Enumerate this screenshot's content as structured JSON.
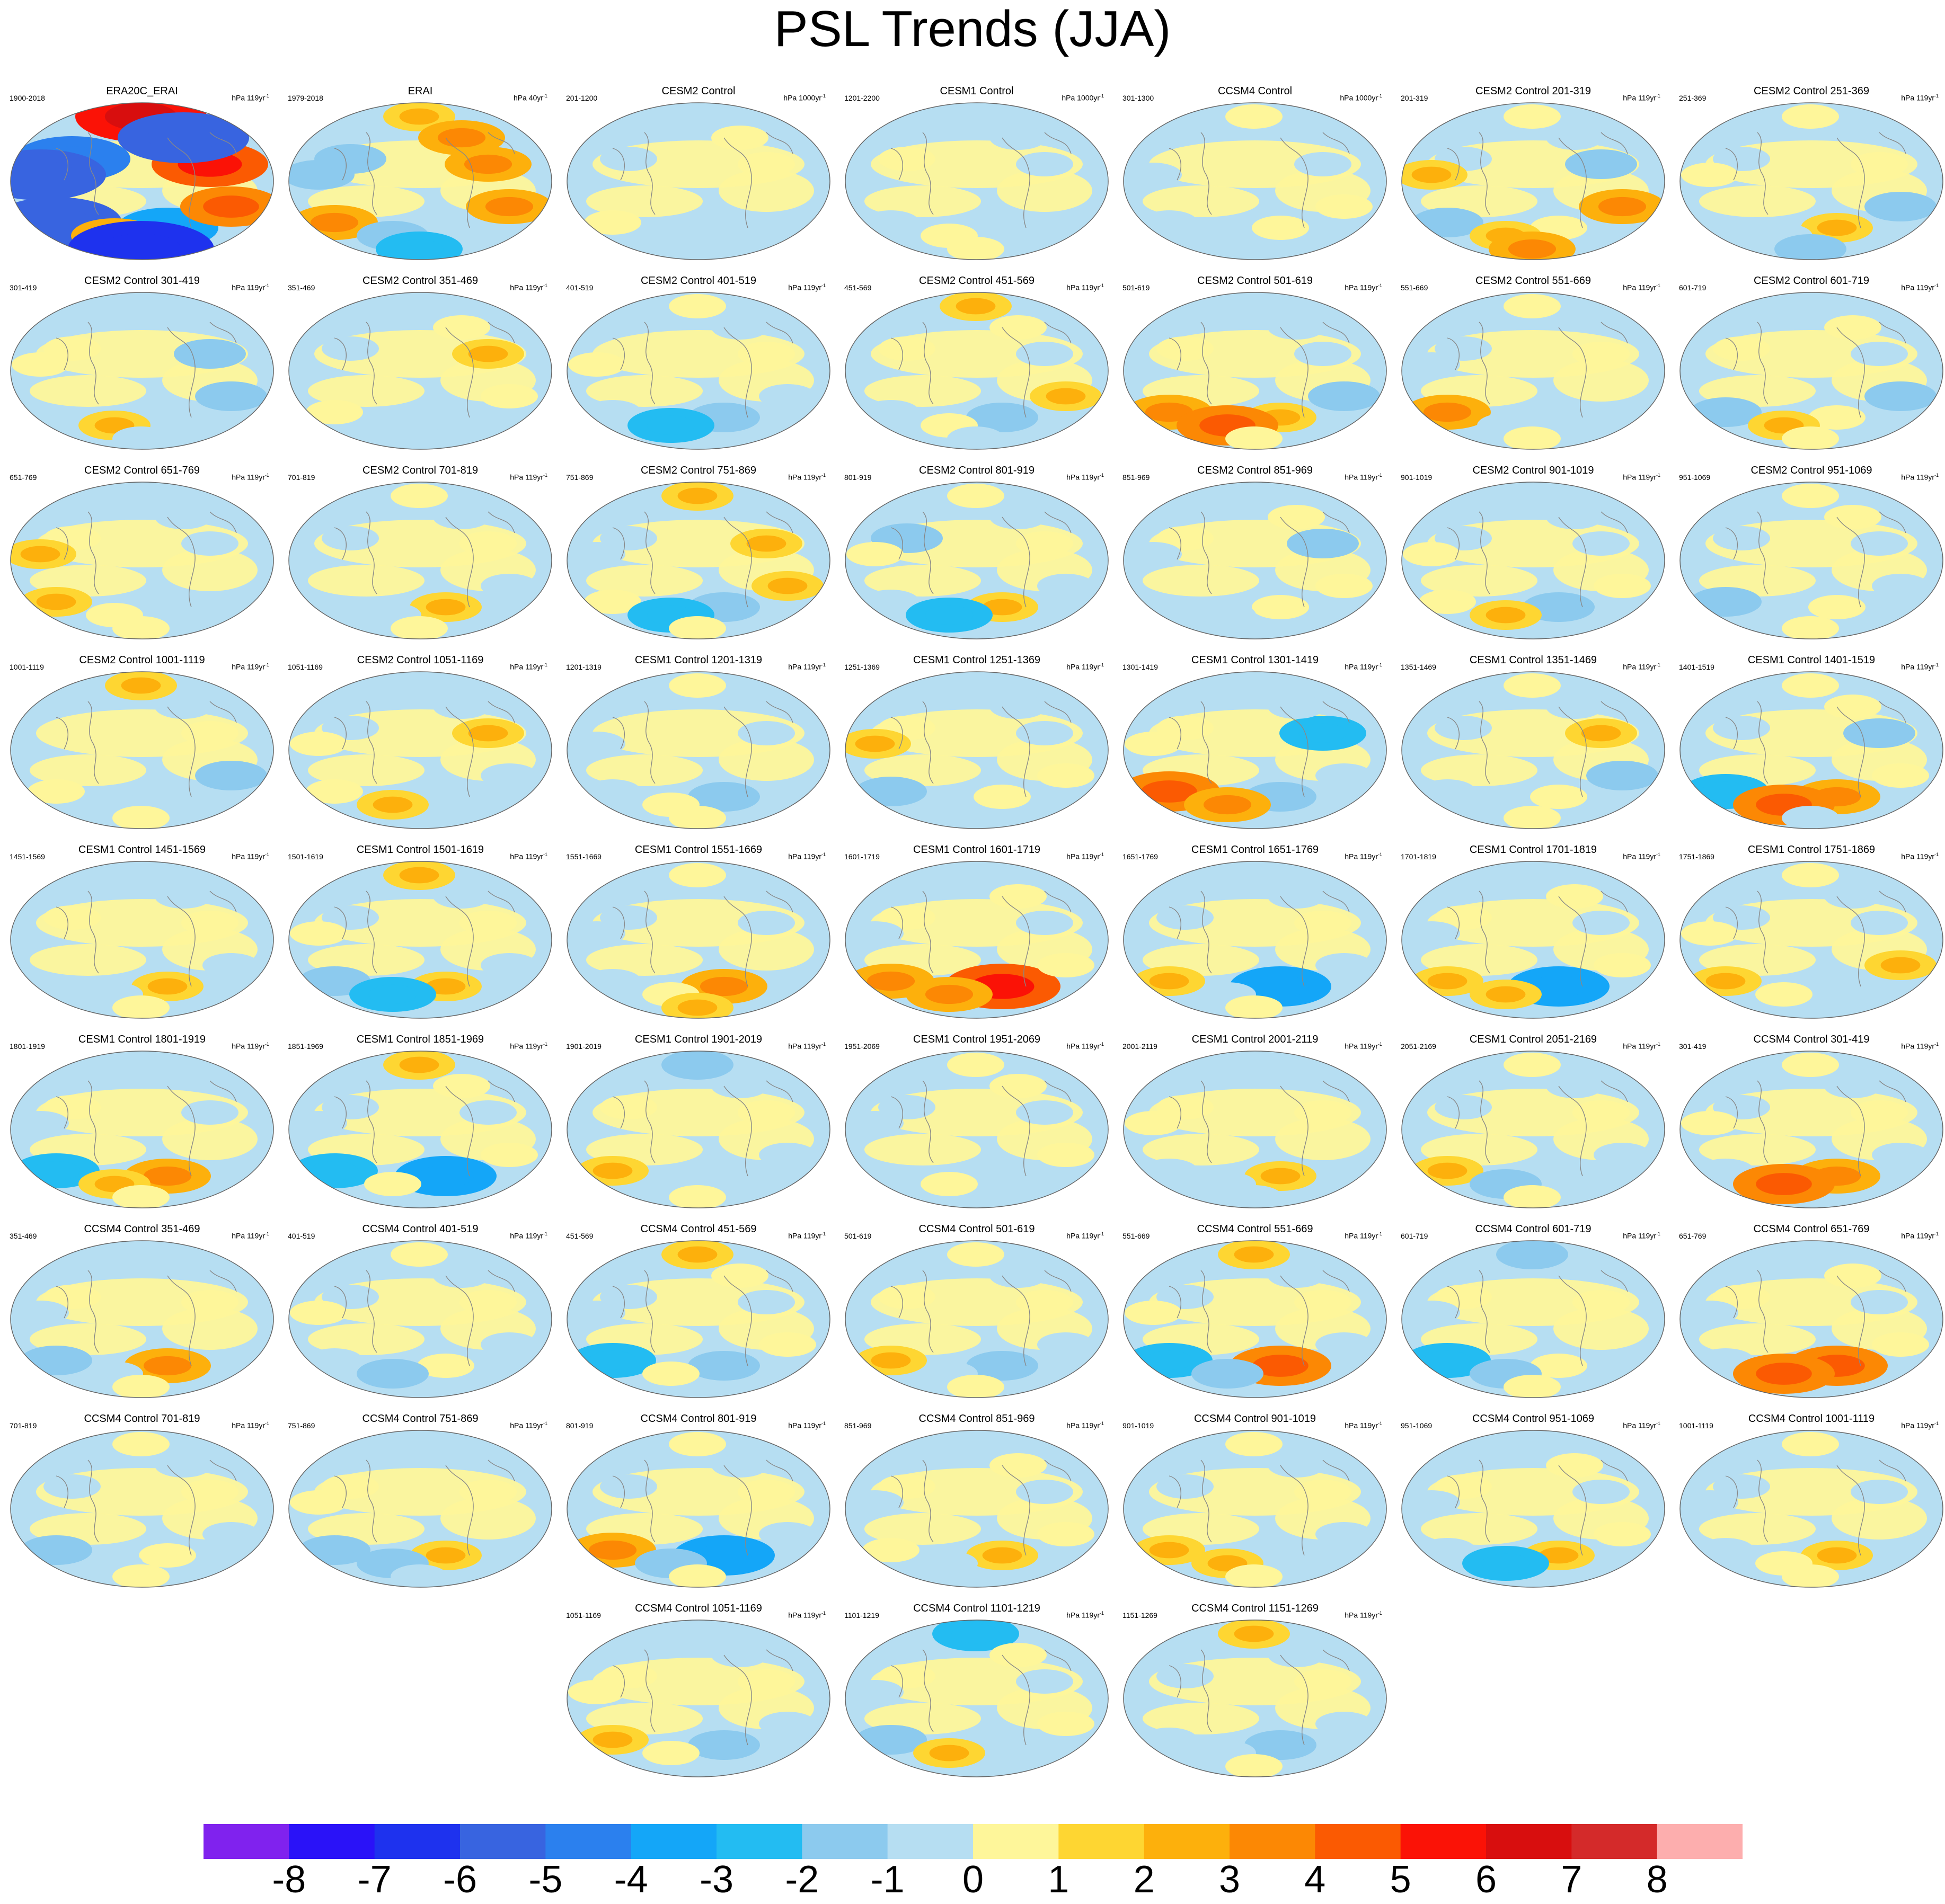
{
  "title": "PSL Trends (JJA)",
  "chart_data": {
    "type": "heatmap",
    "title": "PSL Trends (JJA)",
    "projection": "robinson-global",
    "panels": [
      {
        "title": "ERA20C_ERAI",
        "range": "1900-2018",
        "units": "hPa 119yr",
        "pattern": [
          6,
          -5,
          -6,
          -4,
          3,
          5,
          4,
          -7,
          -6,
          -6
        ]
      },
      {
        "title": "ERAI",
        "range": "1979-2018",
        "units": "hPa 40yr",
        "pattern": [
          2,
          -2,
          3,
          -1,
          -2,
          3,
          3,
          -3,
          -2,
          3
        ]
      },
      {
        "title": "CESM2 Control",
        "range": "201-1200",
        "units": "hPa 1000yr",
        "pattern": [
          0,
          -1,
          1,
          0,
          -1,
          1,
          0,
          -1,
          0,
          1
        ]
      },
      {
        "title": "CESM1 Control",
        "range": "1201-2200",
        "units": "hPa 1000yr",
        "pattern": [
          0,
          1,
          -1,
          0,
          1,
          -1,
          0,
          1,
          0,
          -1
        ]
      },
      {
        "title": "CCSM4 Control",
        "range": "301-1300",
        "units": "hPa 1000yr",
        "pattern": [
          1,
          0,
          -1,
          1,
          0,
          -1,
          1,
          0,
          -1,
          0
        ]
      },
      {
        "title": "CESM2 Control 201-319",
        "range": "201-319",
        "units": "hPa 119yr",
        "pattern": [
          1,
          -1,
          -2,
          1,
          2,
          -2,
          3,
          3,
          2,
          -1
        ]
      },
      {
        "title": "CESM2 Control 251-369",
        "range": "251-369",
        "units": "hPa 119yr",
        "pattern": [
          1,
          -1,
          0,
          2,
          -1,
          1,
          -2,
          -2,
          1,
          0
        ]
      },
      {
        "title": "CESM2 Control 301-419",
        "range": "301-419",
        "units": "hPa 119yr",
        "pattern": [
          -1,
          1,
          0,
          -1,
          2,
          -2,
          -2,
          -1,
          1,
          0
        ]
      },
      {
        "title": "CESM2 Control 351-469",
        "range": "351-469",
        "units": "hPa 119yr",
        "pattern": [
          0,
          -1,
          1,
          -1,
          -1,
          2,
          1,
          -1,
          0,
          1
        ]
      },
      {
        "title": "CESM2 Control 401-519",
        "range": "401-519",
        "units": "hPa 119yr",
        "pattern": [
          1,
          0,
          -1,
          -2,
          -3,
          1,
          -1,
          0,
          1,
          -1
        ]
      },
      {
        "title": "CESM2 Control 451-569",
        "range": "451-569",
        "units": "hPa 119yr",
        "pattern": [
          2,
          1,
          -1,
          -2,
          1,
          -1,
          2,
          -1,
          0,
          1
        ]
      },
      {
        "title": "CESM2 Control 501-619",
        "range": "501-619",
        "units": "hPa 119yr",
        "pattern": [
          -1,
          1,
          3,
          2,
          4,
          -1,
          -2,
          1,
          0,
          -1
        ]
      },
      {
        "title": "CESM2 Control 551-669",
        "range": "551-669",
        "units": "hPa 119yr",
        "pattern": [
          1,
          -1,
          3,
          -1,
          -1,
          1,
          0,
          1,
          -1,
          0
        ]
      },
      {
        "title": "CESM2 Control 601-719",
        "range": "601-719",
        "units": "hPa 119yr",
        "pattern": [
          0,
          1,
          -2,
          1,
          2,
          -1,
          -2,
          1,
          0,
          1
        ]
      },
      {
        "title": "CESM2 Control 651-769",
        "range": "651-769",
        "units": "hPa 119yr",
        "pattern": [
          -1,
          1,
          2,
          -1,
          1,
          -1,
          0,
          1,
          2,
          -1
        ]
      },
      {
        "title": "CESM2 Control 701-819",
        "range": "701-819",
        "units": "hPa 119yr",
        "pattern": [
          1,
          -1,
          0,
          2,
          -1,
          1,
          -1,
          1,
          0,
          -1
        ]
      },
      {
        "title": "CESM2 Control 751-869",
        "range": "751-869",
        "units": "hPa 119yr",
        "pattern": [
          2,
          -1,
          1,
          -2,
          -3,
          2,
          2,
          1,
          -1,
          0
        ]
      },
      {
        "title": "CESM2 Control 801-919",
        "range": "801-919",
        "units": "hPa 119yr",
        "pattern": [
          1,
          -2,
          -1,
          2,
          -3,
          1,
          -1,
          0,
          1,
          -1
        ]
      },
      {
        "title": "CESM2 Control 851-969",
        "range": "851-969",
        "units": "hPa 119yr",
        "pattern": [
          -1,
          1,
          0,
          1,
          -1,
          -2,
          1,
          0,
          -1,
          1
        ]
      },
      {
        "title": "CESM2 Control 901-1019",
        "range": "901-1019",
        "units": "hPa 119yr",
        "pattern": [
          0,
          -1,
          1,
          -2,
          2,
          -1,
          1,
          0,
          1,
          -1
        ]
      },
      {
        "title": "CESM2 Control 951-1069",
        "range": "951-1069",
        "units": "hPa 119yr",
        "pattern": [
          1,
          -1,
          -2,
          1,
          0,
          -1,
          -1,
          1,
          0,
          1
        ]
      },
      {
        "title": "CESM2 Control 1001-1119",
        "range": "1001-1119",
        "units": "hPa 119yr",
        "pattern": [
          2,
          0,
          1,
          -1,
          -1,
          1,
          -2,
          1,
          0,
          -1
        ]
      },
      {
        "title": "CESM2 Control 1051-1169",
        "range": "1051-1169",
        "units": "hPa 119yr",
        "pattern": [
          0,
          -1,
          1,
          -1,
          2,
          2,
          -1,
          0,
          1,
          -1
        ]
      },
      {
        "title": "CESM1 Control 1201-1319",
        "range": "1201-1319",
        "units": "hPa 119yr",
        "pattern": [
          1,
          0,
          -1,
          -2,
          1,
          -1,
          0,
          1,
          -1,
          0
        ]
      },
      {
        "title": "CESM1 Control 1251-1369",
        "range": "1251-1369",
        "units": "hPa 119yr",
        "pattern": [
          -1,
          1,
          -2,
          1,
          0,
          -1,
          1,
          0,
          2,
          -1
        ]
      },
      {
        "title": "CESM1 Control 1301-1419",
        "range": "1301-1419",
        "units": "hPa 119yr",
        "pattern": [
          -1,
          1,
          4,
          -2,
          3,
          -3,
          -1,
          0,
          1,
          -1
        ]
      },
      {
        "title": "CESM1 Control 1351-1469",
        "range": "1351-1469",
        "units": "hPa 119yr",
        "pattern": [
          1,
          -1,
          -1,
          1,
          0,
          2,
          -2,
          1,
          0,
          -1
        ]
      },
      {
        "title": "CESM1 Control 1401-1519",
        "range": "1401-1519",
        "units": "hPa 119yr",
        "pattern": [
          1,
          -1,
          -3,
          3,
          4,
          -2,
          1,
          -1,
          0,
          1
        ]
      },
      {
        "title": "CESM1 Control 1451-1569",
        "range": "1451-1569",
        "units": "hPa 119yr",
        "pattern": [
          -1,
          1,
          0,
          2,
          -1,
          1,
          -1,
          1,
          0,
          -1
        ]
      },
      {
        "title": "CESM1 Control 1501-1619",
        "range": "1501-1619",
        "units": "hPa 119yr",
        "pattern": [
          2,
          -1,
          -2,
          2,
          -3,
          1,
          -1,
          0,
          1,
          -1
        ]
      },
      {
        "title": "CESM1 Control 1551-1669",
        "range": "1551-1669",
        "units": "hPa 119yr",
        "pattern": [
          1,
          -1,
          -1,
          3,
          1,
          -1,
          0,
          2,
          -1,
          0
        ]
      },
      {
        "title": "CESM1 Control 1601-1719",
        "range": "1601-1719",
        "units": "hPa 119yr",
        "pattern": [
          -1,
          1,
          3,
          5,
          3,
          -1,
          1,
          0,
          -1,
          1
        ]
      },
      {
        "title": "CESM1 Control 1651-1769",
        "range": "1651-1769",
        "units": "hPa 119yr",
        "pattern": [
          0,
          -1,
          2,
          -4,
          -1,
          1,
          -1,
          1,
          0,
          -1
        ]
      },
      {
        "title": "CESM1 Control 1701-1819",
        "range": "1701-1819",
        "units": "hPa 119yr",
        "pattern": [
          -1,
          1,
          2,
          -4,
          2,
          -1,
          1,
          0,
          -1,
          1
        ]
      },
      {
        "title": "CESM1 Control 1751-1869",
        "range": "1751-1869",
        "units": "hPa 119yr",
        "pattern": [
          1,
          -1,
          2,
          -1,
          1,
          -1,
          2,
          0,
          1,
          -1
        ]
      },
      {
        "title": "CESM1 Control 1801-1919",
        "range": "1801-1919",
        "units": "hPa 119yr",
        "pattern": [
          -1,
          1,
          -3,
          3,
          2,
          -1,
          0,
          1,
          -1,
          0
        ]
      },
      {
        "title": "CESM1 Control 1851-1969",
        "range": "1851-1969",
        "units": "hPa 119yr",
        "pattern": [
          2,
          -1,
          -3,
          -4,
          1,
          -1,
          1,
          0,
          -1,
          1
        ]
      },
      {
        "title": "CESM1 Control 1901-2019",
        "range": "1901-2019",
        "units": "hPa 119yr",
        "pattern": [
          -2,
          1,
          2,
          -1,
          0,
          1,
          -1,
          1,
          0,
          -1
        ]
      },
      {
        "title": "CESM1 Control 1951-2069",
        "range": "1951-2069",
        "units": "hPa 119yr",
        "pattern": [
          1,
          -1,
          0,
          -1,
          1,
          -1,
          1,
          0,
          -1,
          1
        ]
      },
      {
        "title": "CESM1 Control 2001-2119",
        "range": "2001-2119",
        "units": "hPa 119yr",
        "pattern": [
          -1,
          1,
          -1,
          2,
          -1,
          1,
          0,
          -1,
          1,
          0
        ]
      },
      {
        "title": "CESM1 Control 2051-2169",
        "range": "2051-2169",
        "units": "hPa 119yr",
        "pattern": [
          1,
          -1,
          2,
          -1,
          -2,
          1,
          -1,
          1,
          0,
          -1
        ]
      },
      {
        "title": "CCSM4 Control 301-419",
        "range": "301-419",
        "units": "hPa 119yr",
        "pattern": [
          1,
          -1,
          -1,
          3,
          4,
          1,
          -1,
          0,
          1,
          -1
        ]
      },
      {
        "title": "CCSM4 Control 351-469",
        "range": "351-469",
        "units": "hPa 119yr",
        "pattern": [
          -1,
          1,
          -2,
          3,
          -1,
          1,
          0,
          1,
          -1,
          0
        ]
      },
      {
        "title": "CCSM4 Control 401-519",
        "range": "401-519",
        "units": "hPa 119yr",
        "pattern": [
          1,
          -1,
          -1,
          1,
          -2,
          1,
          -1,
          0,
          1,
          -1
        ]
      },
      {
        "title": "CCSM4 Control 451-569",
        "range": "451-569",
        "units": "hPa 119yr",
        "pattern": [
          2,
          -1,
          -3,
          -2,
          1,
          -1,
          1,
          0,
          -1,
          1
        ]
      },
      {
        "title": "CCSM4 Control 501-619",
        "range": "501-619",
        "units": "hPa 119yr",
        "pattern": [
          1,
          1,
          2,
          -2,
          -1,
          1,
          -1,
          1,
          0,
          -1
        ]
      },
      {
        "title": "CCSM4 Control 551-669",
        "range": "551-669",
        "units": "hPa 119yr",
        "pattern": [
          2,
          -1,
          -3,
          4,
          -2,
          1,
          -1,
          0,
          1,
          -1
        ]
      },
      {
        "title": "CCSM4 Control 601-719",
        "range": "601-719",
        "units": "hPa 119yr",
        "pattern": [
          -2,
          1,
          -3,
          1,
          -2,
          1,
          0,
          1,
          -1,
          0
        ]
      },
      {
        "title": "CCSM4 Control 651-769",
        "range": "651-769",
        "units": "hPa 119yr",
        "pattern": [
          -1,
          1,
          -1,
          4,
          4,
          -1,
          1,
          0,
          -1,
          1
        ]
      },
      {
        "title": "CCSM4 Control 701-819",
        "range": "701-819",
        "units": "hPa 119yr",
        "pattern": [
          1,
          -1,
          -2,
          1,
          -1,
          1,
          -1,
          1,
          0,
          -1
        ]
      },
      {
        "title": "CCSM4 Control 751-869",
        "range": "751-869",
        "units": "hPa 119yr",
        "pattern": [
          -1,
          1,
          -2,
          2,
          -2,
          1,
          0,
          -1,
          1,
          0
        ]
      },
      {
        "title": "CCSM4 Control 801-919",
        "range": "801-919",
        "units": "hPa 119yr",
        "pattern": [
          1,
          -1,
          3,
          -4,
          -2,
          1,
          -1,
          1,
          0,
          -1
        ]
      },
      {
        "title": "CCSM4 Control 851-969",
        "range": "851-969",
        "units": "hPa 119yr",
        "pattern": [
          -1,
          1,
          1,
          2,
          -1,
          -1,
          1,
          0,
          -1,
          1
        ]
      },
      {
        "title": "CCSM4 Control 901-1019",
        "range": "901-1019",
        "units": "hPa 119yr",
        "pattern": [
          1,
          -1,
          2,
          -1,
          2,
          1,
          -1,
          1,
          0,
          -1
        ]
      },
      {
        "title": "CCSM4 Control 951-1069",
        "range": "951-1069",
        "units": "hPa 119yr",
        "pattern": [
          -1,
          1,
          -1,
          2,
          -3,
          -1,
          1,
          0,
          -1,
          1
        ]
      },
      {
        "title": "CCSM4 Control 1001-1119",
        "range": "1001-1119",
        "units": "hPa 119yr",
        "pattern": [
          1,
          -1,
          -1,
          2,
          1,
          -1,
          0,
          1,
          -1,
          0
        ]
      },
      {
        "title": "CCSM4 Control 1051-1169",
        "range": "1051-1169",
        "units": "hPa 119yr",
        "pattern": [
          -1,
          1,
          2,
          -2,
          1,
          1,
          -1,
          0,
          1,
          -1
        ]
      },
      {
        "title": "CCSM4 Control 1101-1219",
        "range": "1101-1219",
        "units": "hPa 119yr",
        "pattern": [
          -3,
          1,
          -2,
          -1,
          2,
          -1,
          1,
          0,
          -1,
          1
        ]
      },
      {
        "title": "CCSM4 Control 1151-1269",
        "range": "1151-1269",
        "units": "hPa 119yr",
        "pattern": [
          2,
          -1,
          -1,
          -2,
          -1,
          1,
          -1,
          1,
          0,
          -1
        ]
      }
    ],
    "colorbar": {
      "label_values": [
        "-8",
        "-7",
        "-6",
        "-5",
        "-4",
        "-3",
        "-2",
        "-1",
        "0",
        "1",
        "2",
        "3",
        "4",
        "5",
        "6",
        "7",
        "8"
      ],
      "colors": [
        "#8022ee",
        "#2a12f8",
        "#1e32ee",
        "#3864e0",
        "#2b80ee",
        "#14a6f8",
        "#23bcf2",
        "#8ccaee",
        "#b6def2",
        "#fef69a",
        "#fed632",
        "#fdb00c",
        "#fc8804",
        "#fb5a02",
        "#fb1206",
        "#d80e0e",
        "#d42a2a",
        "#fdaeae"
      ]
    }
  }
}
